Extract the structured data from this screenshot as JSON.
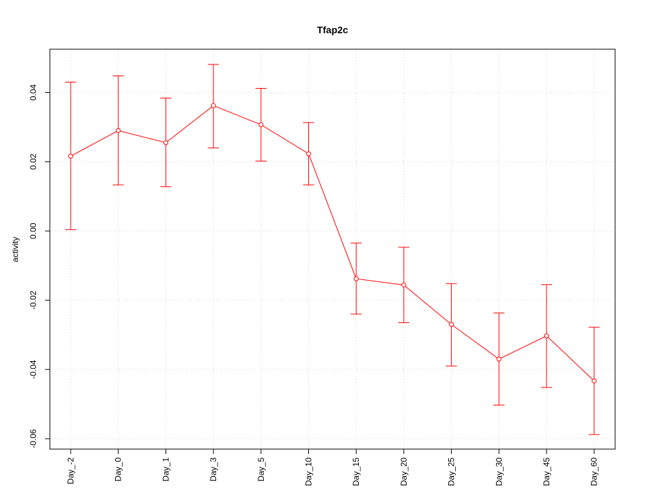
{
  "chart_data": {
    "type": "line",
    "title": "Tfap2c",
    "xlabel": "",
    "ylabel": "activity",
    "categories": [
      "Day_-2",
      "Day_0",
      "Day_1",
      "Day_3",
      "Day_5",
      "Day_10",
      "Day_15",
      "Day_20",
      "Day_25",
      "Day_30",
      "Day_45",
      "Day_60"
    ],
    "series": [
      {
        "values": [
          0.0216,
          0.029,
          0.0255,
          0.0362,
          0.0307,
          0.0223,
          -0.0138,
          -0.0156,
          -0.027,
          -0.037,
          -0.0303,
          -0.0433
        ],
        "lower": [
          0.0004,
          0.0133,
          0.0128,
          0.024,
          0.0202,
          0.0133,
          -0.024,
          -0.0265,
          -0.039,
          -0.0503,
          -0.0452,
          -0.0588
        ],
        "upper": [
          0.043,
          0.0448,
          0.0384,
          0.0481,
          0.0412,
          0.0313,
          -0.0035,
          -0.0047,
          -0.0152,
          -0.0237,
          -0.0155,
          -0.0278
        ],
        "color": "#ff0000"
      }
    ],
    "yticks": [
      -0.06,
      -0.04,
      -0.02,
      0.0,
      0.02,
      0.04
    ],
    "ytick_labels": [
      "-0.06",
      "-0.04",
      "-0.02",
      "0.00",
      "0.02",
      "0.04"
    ],
    "ylim": [
      -0.063,
      0.0525
    ],
    "grid": true,
    "grid_color": "#d3d3d3",
    "axis_color": "#000000"
  }
}
